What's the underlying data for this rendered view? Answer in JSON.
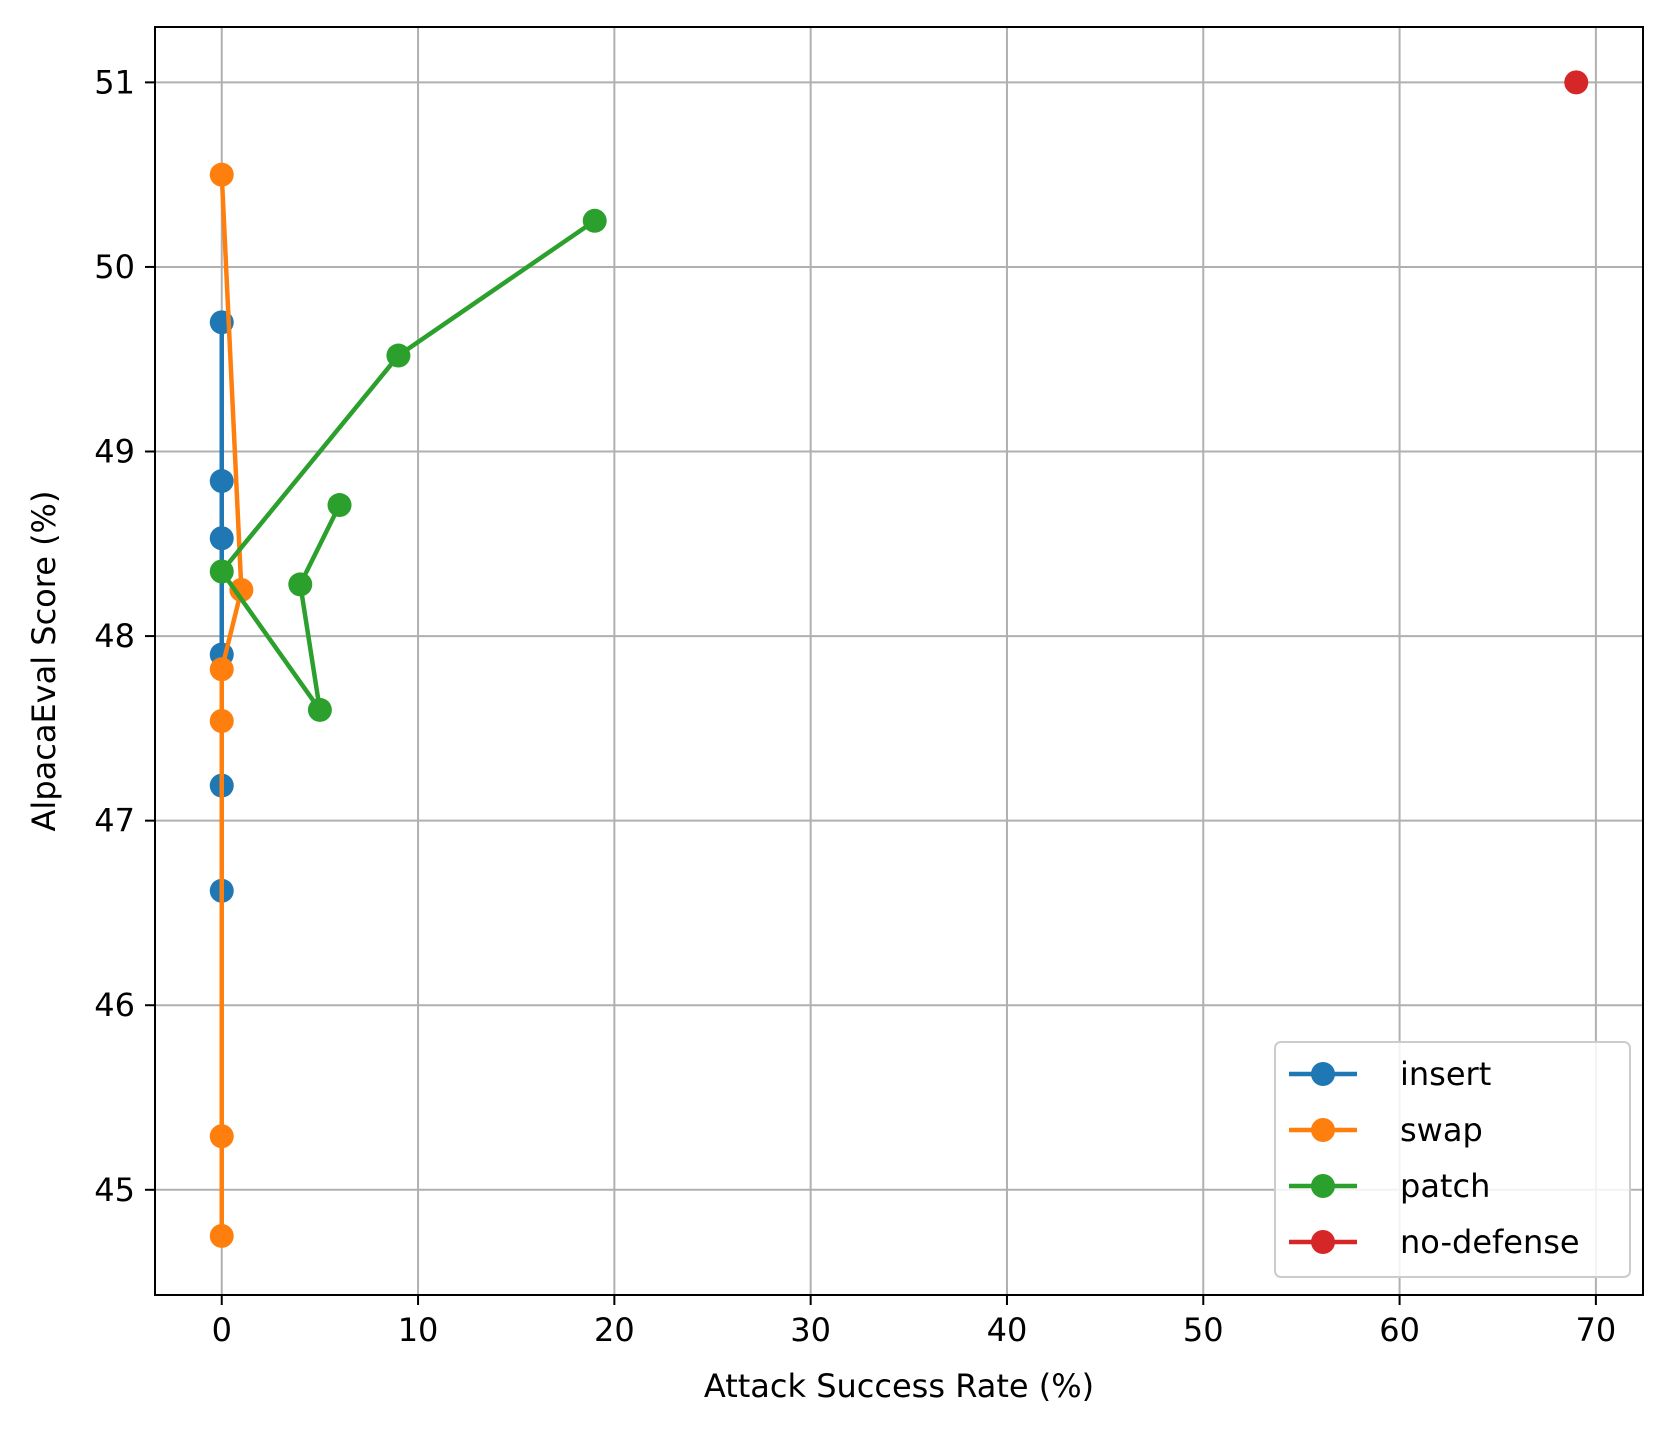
{
  "chart_data": {
    "type": "line",
    "xlabel": "Attack Success Rate (%)",
    "ylabel": "AlpacaEval Score (%)",
    "xlim": [
      -3.4,
      72.4
    ],
    "ylim": [
      44.43,
      51.3
    ],
    "xticks": [
      0,
      10,
      20,
      30,
      40,
      50,
      60,
      70
    ],
    "yticks": [
      45,
      46,
      47,
      48,
      49,
      50,
      51
    ],
    "grid": true,
    "legend_position": "lower-right",
    "series": [
      {
        "name": "insert",
        "color": "#1f77b4",
        "x": [
          0,
          0,
          0,
          0,
          0,
          0
        ],
        "y": [
          49.7,
          48.84,
          48.53,
          47.9,
          47.19,
          46.62
        ]
      },
      {
        "name": "swap",
        "color": "#ff7f0e",
        "x": [
          0,
          1,
          0,
          0,
          0,
          0
        ],
        "y": [
          50.5,
          48.25,
          47.82,
          47.54,
          45.29,
          44.75
        ]
      },
      {
        "name": "patch",
        "color": "#2ca02c",
        "x": [
          19,
          9,
          0,
          5,
          4,
          6
        ],
        "y": [
          50.25,
          49.52,
          48.35,
          47.6,
          48.28,
          48.71
        ]
      },
      {
        "name": "no-defense",
        "color": "#d62728",
        "x": [
          69
        ],
        "y": [
          51.0
        ]
      }
    ]
  }
}
